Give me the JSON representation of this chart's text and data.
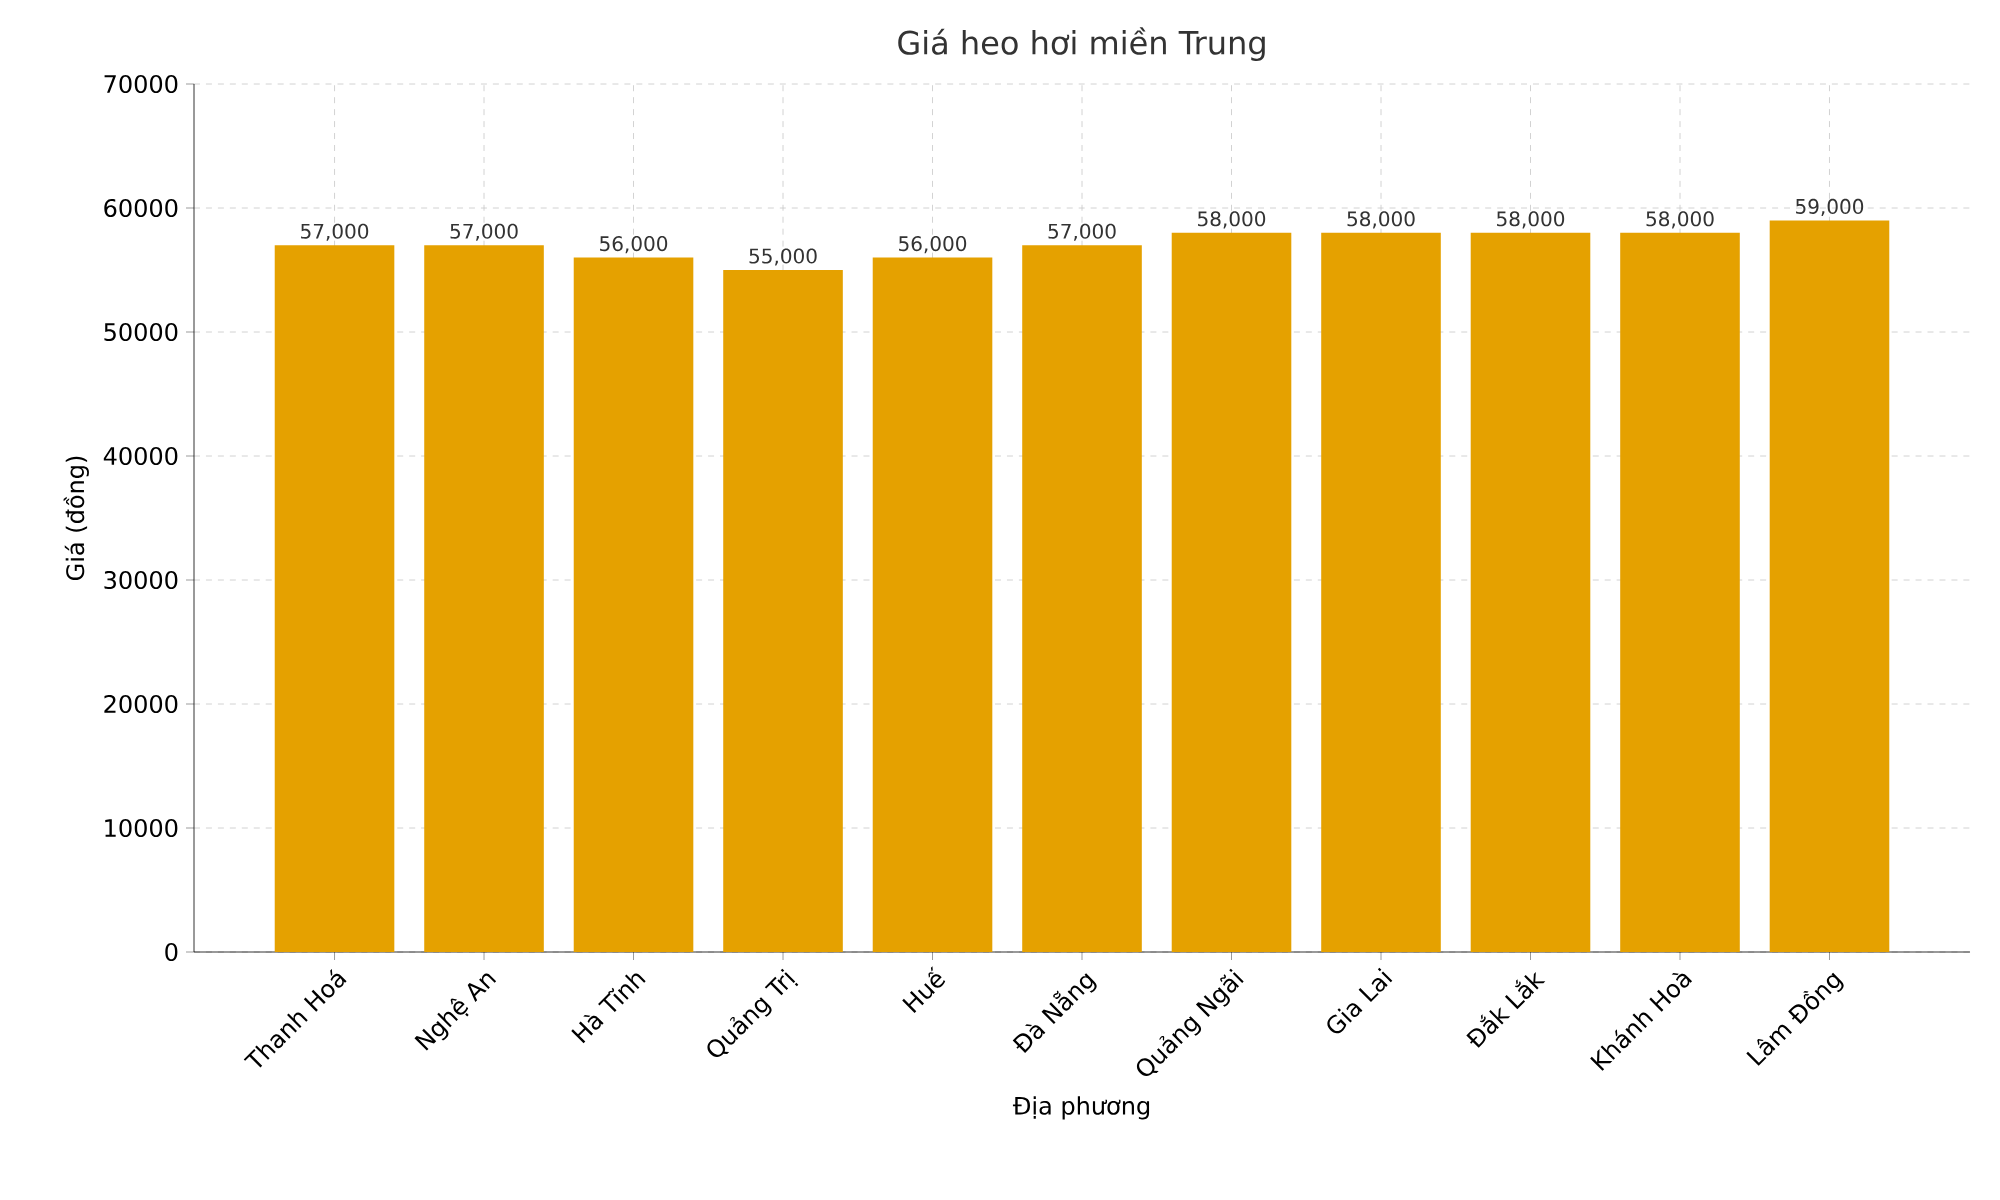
{
  "chart_data": {
    "type": "bar",
    "title": "Giá heo hơi miền Trung",
    "xlabel": "Địa phương",
    "ylabel": "Giá (đồng)",
    "categories": [
      "Thanh Hoá",
      "Nghệ An",
      "Hà Tĩnh",
      "Quảng Trị",
      "Huế",
      "Đà Nẵng",
      "Quảng Ngãi",
      "Gia Lai",
      "Đắk Lắk",
      "Khánh Hoà",
      "Lâm Đồng"
    ],
    "values": [
      57000,
      57000,
      56000,
      55000,
      56000,
      57000,
      58000,
      58000,
      58000,
      58000,
      59000
    ],
    "value_labels": [
      "57,000",
      "57,000",
      "56,000",
      "55,000",
      "56,000",
      "57,000",
      "58,000",
      "58,000",
      "58,000",
      "58,000",
      "59,000"
    ],
    "color": "#e5a100",
    "ylim": [
      0,
      70000
    ],
    "yticks": [
      0,
      10000,
      20000,
      30000,
      40000,
      50000,
      60000,
      70000
    ],
    "grid": true
  }
}
